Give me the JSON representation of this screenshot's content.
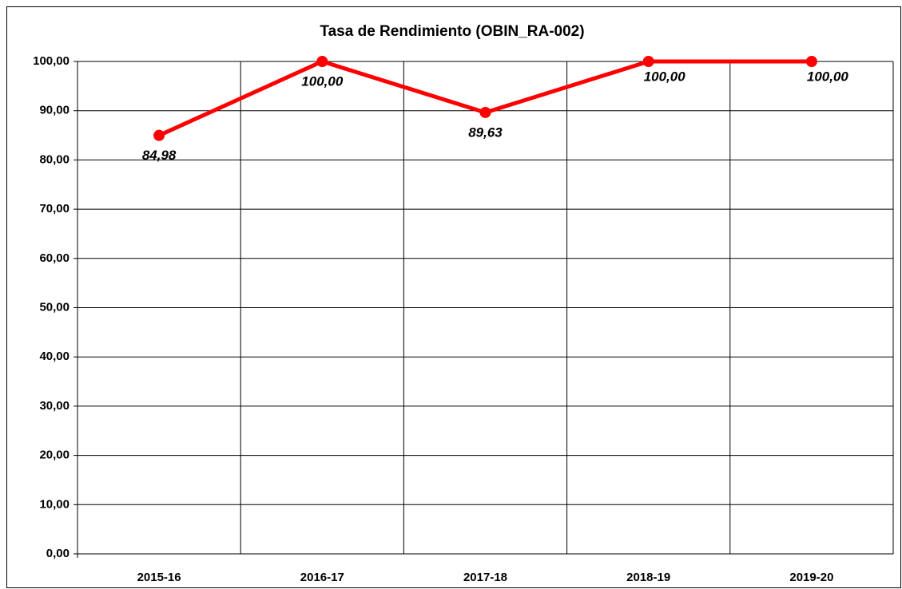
{
  "chart_data": {
    "type": "line",
    "title": "Tasa de Rendimiento (OBIN_RA-002)",
    "categories": [
      "2015-16",
      "2016-17",
      "2017-18",
      "2018-19",
      "2019-20"
    ],
    "values": [
      84.98,
      100,
      89.63,
      100,
      100
    ],
    "value_labels": [
      "84,98",
      "100,00",
      "89,63",
      "100,00",
      "100,00"
    ],
    "color": "#ff0000",
    "ylim": [
      0,
      100
    ],
    "yticks": [
      {
        "value": 0,
        "label": "0,00"
      },
      {
        "value": 10,
        "label": "10,00"
      },
      {
        "value": 20,
        "label": "20,00"
      },
      {
        "value": 30,
        "label": "30,00"
      },
      {
        "value": 40,
        "label": "40,00"
      },
      {
        "value": 50,
        "label": "50,00"
      },
      {
        "value": 60,
        "label": "60,00"
      },
      {
        "value": 70,
        "label": "70,00"
      },
      {
        "value": 80,
        "label": "80,00"
      },
      {
        "value": 90,
        "label": "90,00"
      },
      {
        "value": 100,
        "label": "100,00"
      }
    ],
    "grid": true
  }
}
